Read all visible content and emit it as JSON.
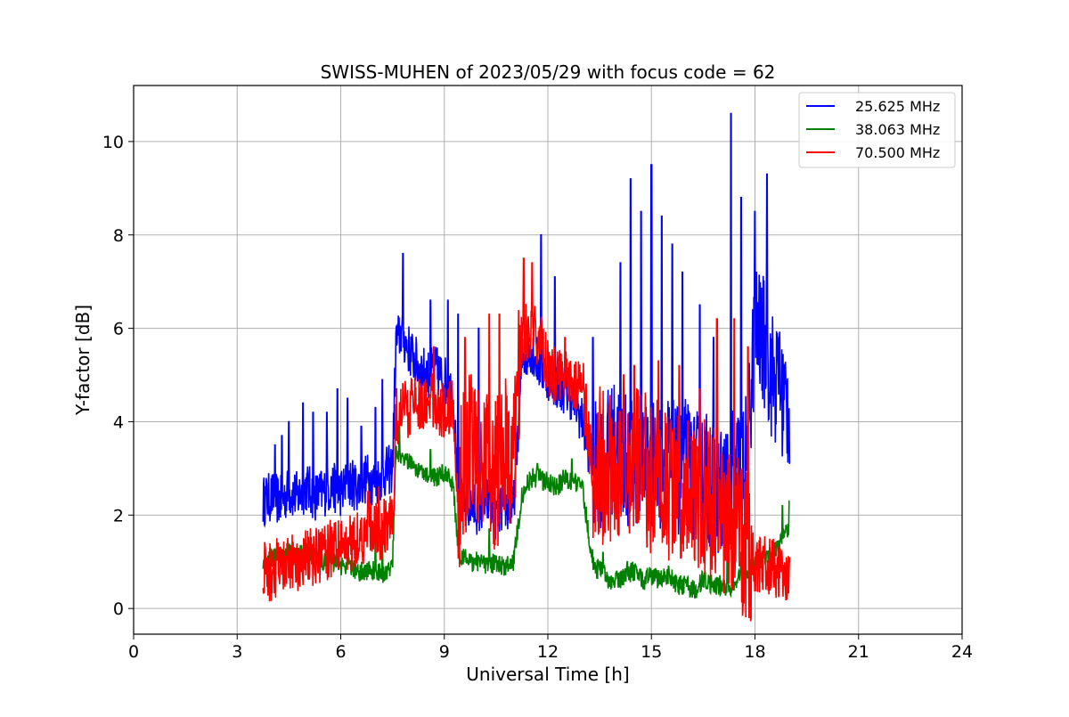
{
  "chart_data": {
    "type": "line",
    "title": "SWISS-MUHEN of 2023/05/29 with focus code = 62",
    "xlabel": "Universal Time [h]",
    "ylabel": "Y-factor [dB]",
    "xlim": [
      0,
      24
    ],
    "ylim": [
      -0.55,
      11.2
    ],
    "x_ticks": [
      0,
      3,
      6,
      9,
      12,
      15,
      18,
      21,
      24
    ],
    "x_tick_labels": [
      "0",
      "3",
      "6",
      "9",
      "12",
      "15",
      "18",
      "21",
      "24"
    ],
    "y_ticks": [
      0,
      2,
      4,
      6,
      8,
      10
    ],
    "y_tick_labels": [
      "0",
      "2",
      "4",
      "6",
      "8",
      "10"
    ],
    "grid": true,
    "legend_position": "top-right",
    "series": [
      {
        "name": "25.625 MHz",
        "color": "#0000ff",
        "x": [
          3.75,
          4.0,
          4.25,
          4.5,
          4.75,
          5.0,
          5.25,
          5.5,
          5.75,
          6.0,
          6.25,
          6.5,
          6.75,
          7.0,
          7.25,
          7.5,
          7.6,
          7.75,
          8.0,
          8.25,
          8.5,
          8.75,
          9.0,
          9.25,
          9.4,
          9.5,
          9.75,
          10.0,
          10.25,
          10.5,
          10.75,
          11.0,
          11.25,
          11.5,
          11.75,
          12.0,
          12.25,
          12.5,
          12.75,
          13.0,
          13.25,
          13.4,
          13.5,
          13.75,
          14.0,
          14.25,
          14.5,
          14.75,
          15.0,
          15.25,
          15.5,
          15.75,
          16.0,
          16.25,
          16.5,
          16.75,
          17.0,
          17.25,
          17.5,
          17.75,
          18.0,
          18.25,
          18.5,
          18.75,
          19.0
        ],
        "values": [
          2.3,
          2.4,
          2.3,
          2.5,
          2.4,
          2.6,
          2.4,
          2.5,
          2.6,
          2.5,
          2.7,
          2.6,
          2.8,
          2.7,
          2.9,
          3.0,
          5.7,
          5.9,
          5.5,
          5.2,
          5.0,
          5.1,
          4.9,
          4.6,
          2.5,
          2.3,
          2.2,
          2.1,
          2.3,
          2.0,
          2.2,
          2.1,
          5.3,
          5.6,
          5.2,
          5.0,
          4.8,
          4.7,
          4.5,
          4.0,
          3.2,
          3.0,
          3.1,
          3.3,
          3.6,
          3.2,
          3.0,
          3.4,
          3.1,
          3.0,
          3.2,
          2.9,
          3.1,
          2.8,
          2.9,
          2.7,
          2.5,
          2.7,
          3.0,
          3.2,
          6.0,
          5.7,
          5.0,
          4.6,
          4.3
        ],
        "spike_x": [
          4.1,
          4.3,
          4.5,
          4.9,
          5.2,
          5.6,
          5.9,
          6.2,
          6.6,
          7.0,
          7.2,
          7.8,
          8.6,
          9.1,
          9.4,
          10.0,
          10.3,
          11.8,
          12.2,
          13.3,
          14.1,
          14.4,
          14.7,
          15.0,
          15.3,
          15.6,
          15.9,
          16.4,
          16.8,
          17.3,
          17.6,
          18.0,
          18.35,
          18.7
        ],
        "spike_values": [
          3.5,
          3.7,
          4.0,
          4.4,
          4.2,
          4.2,
          4.7,
          4.5,
          3.9,
          4.3,
          4.9,
          7.6,
          6.6,
          6.6,
          6.3,
          6.0,
          4.6,
          8.0,
          7.1,
          5.8,
          7.4,
          9.2,
          8.5,
          9.5,
          8.4,
          7.8,
          7.2,
          6.5,
          5.8,
          10.6,
          8.8,
          8.5,
          9.3,
          5.8
        ]
      },
      {
        "name": "38.063 MHz",
        "color": "#008000",
        "x": [
          3.75,
          4.0,
          4.25,
          4.5,
          4.75,
          5.0,
          5.25,
          5.5,
          5.75,
          6.0,
          6.25,
          6.5,
          6.75,
          7.0,
          7.25,
          7.5,
          7.6,
          7.75,
          8.0,
          8.25,
          8.5,
          8.75,
          9.0,
          9.25,
          9.4,
          9.5,
          9.75,
          10.0,
          10.25,
          10.5,
          10.75,
          11.0,
          11.25,
          11.5,
          11.75,
          12.0,
          12.25,
          12.5,
          12.75,
          13.0,
          13.25,
          13.4,
          13.5,
          13.75,
          14.0,
          14.25,
          14.5,
          14.75,
          15.0,
          15.25,
          15.5,
          15.75,
          16.0,
          16.25,
          16.5,
          16.75,
          17.0,
          17.25,
          17.5,
          17.75,
          18.0,
          18.25,
          18.5,
          18.75,
          19.0
        ],
        "values": [
          1.0,
          1.1,
          1.1,
          1.2,
          1.1,
          1.2,
          1.1,
          1.0,
          1.0,
          0.9,
          0.9,
          0.8,
          0.8,
          0.8,
          0.7,
          1.0,
          3.4,
          3.3,
          3.1,
          3.0,
          2.9,
          2.8,
          2.9,
          2.7,
          1.2,
          1.1,
          1.0,
          1.0,
          0.9,
          1.0,
          0.9,
          1.0,
          2.4,
          2.8,
          2.8,
          2.7,
          2.6,
          2.8,
          2.7,
          2.6,
          1.2,
          0.8,
          0.9,
          0.6,
          0.6,
          0.7,
          0.8,
          0.6,
          0.7,
          0.6,
          0.7,
          0.5,
          0.5,
          0.4,
          0.6,
          0.5,
          0.5,
          0.4,
          0.7,
          0.8,
          1.0,
          1.1,
          1.2,
          1.4,
          1.8
        ],
        "spike_x": [
          7.0,
          7.2,
          7.7,
          8.6,
          10.3,
          11.7,
          12.7,
          13.6,
          14.3,
          17.2,
          17.6,
          18.8,
          19.0
        ],
        "spike_values": [
          1.6,
          1.8,
          3.9,
          3.4,
          1.7,
          3.1,
          3.2,
          1.2,
          1.0,
          1.3,
          1.2,
          2.2,
          2.3
        ]
      },
      {
        "name": "70.500 MHz",
        "color": "#ff0000",
        "x": [
          3.75,
          4.0,
          4.25,
          4.5,
          4.75,
          5.0,
          5.25,
          5.5,
          5.75,
          6.0,
          6.25,
          6.5,
          6.75,
          7.0,
          7.25,
          7.5,
          7.6,
          7.75,
          8.0,
          8.25,
          8.5,
          8.75,
          9.0,
          9.25,
          9.4,
          9.5,
          9.75,
          10.0,
          10.25,
          10.5,
          10.75,
          11.0,
          11.25,
          11.5,
          11.75,
          12.0,
          12.25,
          12.5,
          12.75,
          13.0,
          13.25,
          13.4,
          13.5,
          13.75,
          14.0,
          14.25,
          14.5,
          14.75,
          15.0,
          15.25,
          15.5,
          15.75,
          16.0,
          16.25,
          16.5,
          16.75,
          17.0,
          17.25,
          17.5,
          17.75,
          18.0,
          18.25,
          18.5,
          18.75,
          19.0
        ],
        "values": [
          0.8,
          0.8,
          0.9,
          0.9,
          1.0,
          1.1,
          1.1,
          1.2,
          1.3,
          1.3,
          1.4,
          1.5,
          1.6,
          1.6,
          1.7,
          1.8,
          4.1,
          4.2,
          4.3,
          4.4,
          4.5,
          4.3,
          4.2,
          4.4,
          2.0,
          3.0,
          3.5,
          3.0,
          3.2,
          2.8,
          3.3,
          3.2,
          5.8,
          6.0,
          5.8,
          5.2,
          5.0,
          5.1,
          4.9,
          4.8,
          3.2,
          2.8,
          3.1,
          2.9,
          3.0,
          3.3,
          3.2,
          3.0,
          2.8,
          2.9,
          2.7,
          2.6,
          2.6,
          2.5,
          2.4,
          2.3,
          2.1,
          1.8,
          1.7,
          1.4,
          1.0,
          0.9,
          0.9,
          0.8,
          0.6
        ],
        "spike_x": [
          6.8,
          7.1,
          8.7,
          9.6,
          10.3,
          10.6,
          11.3,
          11.55,
          12.5,
          13.1,
          14.2,
          14.5,
          15.2,
          15.8,
          16.4,
          16.9,
          17.4,
          17.8
        ],
        "spike_values": [
          2.5,
          2.6,
          5.6,
          5.8,
          6.3,
          6.3,
          7.5,
          7.4,
          5.8,
          4.8,
          5.0,
          5.2,
          5.3,
          5.2,
          4.7,
          6.2,
          6.2,
          5.6
        ]
      }
    ]
  }
}
